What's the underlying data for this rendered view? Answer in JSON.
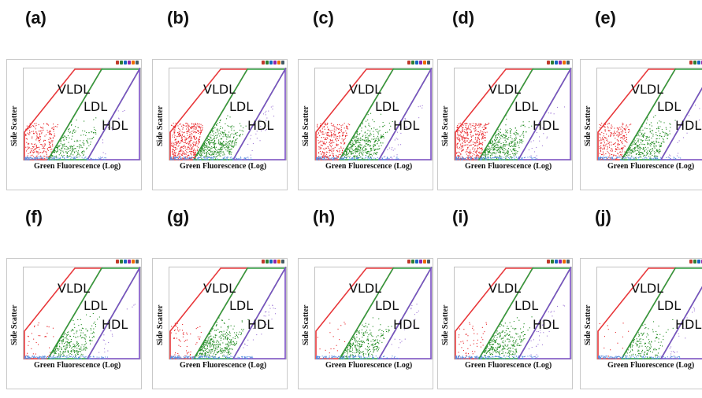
{
  "chart_data": {
    "type": "scatter",
    "xlabel": "Green Fluorescence (Log)",
    "ylabel": "Side Scatter",
    "gates": [
      {
        "name": "VLDL",
        "color": "#e8383b"
      },
      {
        "name": "LDL",
        "color": "#2e9e3f"
      },
      {
        "name": "HDL",
        "color": "#7b4fc4"
      }
    ],
    "event_colors": {
      "VLDL": "#e8262a",
      "LDL": "#1f8a1f",
      "HDL": "#a07ad8",
      "ungated": "#5b8fe0"
    },
    "toolbar_icons": [
      "zoom-in-icon",
      "zoom-out-icon",
      "pan-icon",
      "crosshair-icon",
      "grid-icon",
      "export-icon"
    ],
    "panels": [
      {
        "letter": "(a)",
        "density": {
          "VLDL": 0.55,
          "LDL": 0.45,
          "HDL": 0.08,
          "base": 0.7
        }
      },
      {
        "letter": "(b)",
        "density": {
          "VLDL": 1.0,
          "LDL": 0.85,
          "HDL": 0.2,
          "base": 0.8
        }
      },
      {
        "letter": "(c)",
        "density": {
          "VLDL": 0.7,
          "LDL": 0.8,
          "HDL": 0.18,
          "base": 0.8
        }
      },
      {
        "letter": "(d)",
        "density": {
          "VLDL": 0.9,
          "LDL": 0.75,
          "HDL": 0.15,
          "base": 0.8
        }
      },
      {
        "letter": "(e)",
        "density": {
          "VLDL": 0.6,
          "LDL": 0.65,
          "HDL": 0.12,
          "base": 0.7
        }
      },
      {
        "letter": "(f)",
        "density": {
          "VLDL": 0.08,
          "LDL": 0.55,
          "HDL": 0.1,
          "base": 0.8
        }
      },
      {
        "letter": "(g)",
        "density": {
          "VLDL": 0.15,
          "LDL": 0.75,
          "HDL": 0.15,
          "base": 0.85
        }
      },
      {
        "letter": "(h)",
        "density": {
          "VLDL": 0.04,
          "LDL": 0.55,
          "HDL": 0.12,
          "base": 0.7
        }
      },
      {
        "letter": "(i)",
        "density": {
          "VLDL": 0.12,
          "LDL": 0.6,
          "HDL": 0.2,
          "base": 0.8
        }
      },
      {
        "letter": "(j)",
        "density": {
          "VLDL": 0.03,
          "LDL": 0.3,
          "HDL": 0.15,
          "base": 0.7
        }
      }
    ]
  }
}
